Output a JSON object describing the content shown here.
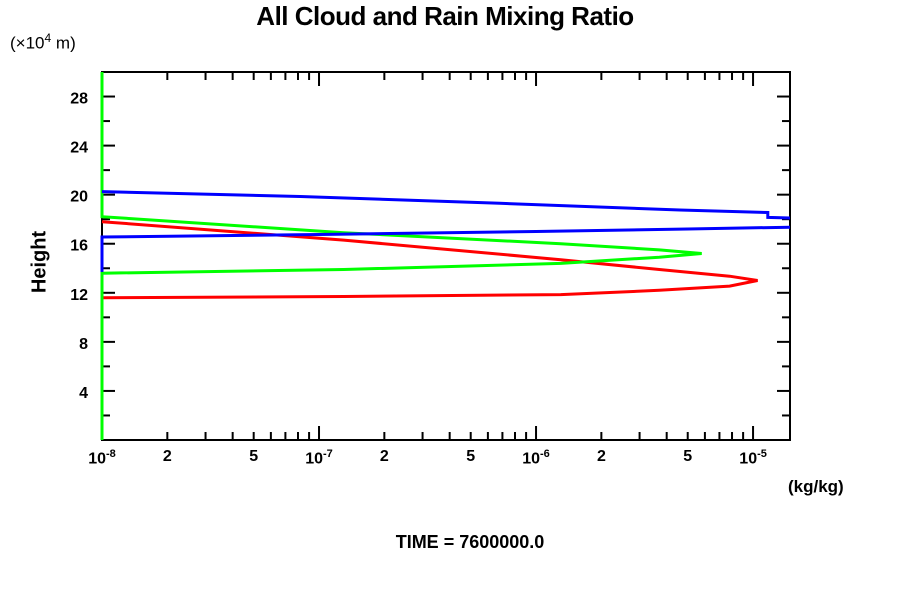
{
  "chart_data": {
    "type": "line",
    "title": "All Cloud and Rain Mixing Ratio",
    "xlabel": "(kg/kg)",
    "ylabel": "Height",
    "y_unit_label": {
      "pre": "(×10",
      "sup": "4",
      "post": " m)"
    },
    "time_label": "TIME = 7600000.0",
    "x_scale": "log",
    "x_range": [
      1e-08,
      1.48e-05
    ],
    "y_range": [
      0,
      30
    ],
    "grid": false,
    "legend": "none",
    "y_ticks_major": [
      4,
      8,
      12,
      16,
      20,
      24,
      28
    ],
    "y_ticks_minor": [
      2,
      6,
      10,
      14,
      18,
      22,
      26
    ],
    "x_tick_labels": [
      {
        "v": 1e-08,
        "base": "10",
        "sup": "-8"
      },
      {
        "v": 2e-08,
        "base": "2",
        "sup": ""
      },
      {
        "v": 5e-08,
        "base": "5",
        "sup": ""
      },
      {
        "v": 1e-07,
        "base": "10",
        "sup": "-7"
      },
      {
        "v": 2e-07,
        "base": "2",
        "sup": ""
      },
      {
        "v": 5e-07,
        "base": "5",
        "sup": ""
      },
      {
        "v": 1e-06,
        "base": "10",
        "sup": "-6"
      },
      {
        "v": 2e-06,
        "base": "2",
        "sup": ""
      },
      {
        "v": 5e-06,
        "base": "5",
        "sup": ""
      },
      {
        "v": 1e-05,
        "base": "10",
        "sup": "-5"
      }
    ],
    "series": [
      {
        "name": "red-curve",
        "color": "#ff0000",
        "paths": [
          [
            [
              1e-08,
              11.6
            ],
            [
              1.3e-07,
              11.7
            ],
            [
              1.3e-06,
              11.85
            ],
            [
              3.7e-06,
              12.2
            ],
            [
              7.8e-06,
              12.55
            ],
            [
              1.05e-05,
              13.0
            ],
            [
              7.8e-06,
              13.35
            ],
            [
              3.7e-06,
              13.9
            ],
            [
              1.3e-06,
              14.7
            ],
            [
              1.3e-07,
              16.3
            ],
            [
              1e-08,
              17.8
            ]
          ]
        ]
      },
      {
        "name": "green-curve",
        "color": "#00ff00",
        "paths": [
          [
            [
              1e-08,
              0
            ],
            [
              1e-08,
              13.6
            ],
            [
              1.3e-07,
              13.9
            ],
            [
              1.3e-06,
              14.4
            ],
            [
              3.7e-06,
              14.9
            ],
            [
              5.8e-06,
              15.2
            ],
            [
              3.7e-06,
              15.5
            ],
            [
              1.3e-06,
              16.0
            ],
            [
              1.3e-07,
              16.9
            ],
            [
              1e-08,
              18.2
            ],
            [
              1e-08,
              30
            ]
          ]
        ]
      },
      {
        "name": "blue-curve",
        "color": "#0000ff",
        "paths": [
          [
            [
              1e-08,
              13.7
            ],
            [
              1e-08,
              16.55
            ],
            [
              1e-07,
              16.75
            ],
            [
              1e-06,
              17.0
            ],
            [
              5e-06,
              17.2
            ],
            [
              1.48e-05,
              17.35
            ]
          ],
          [
            [
              1.48e-05,
              18.1
            ],
            [
              1.17e-05,
              18.15
            ],
            [
              1.17e-05,
              18.55
            ],
            [
              4.6e-06,
              18.75
            ],
            [
              6.8e-07,
              19.3
            ],
            [
              8.2e-08,
              19.85
            ],
            [
              1e-08,
              20.25
            ]
          ]
        ]
      }
    ]
  }
}
